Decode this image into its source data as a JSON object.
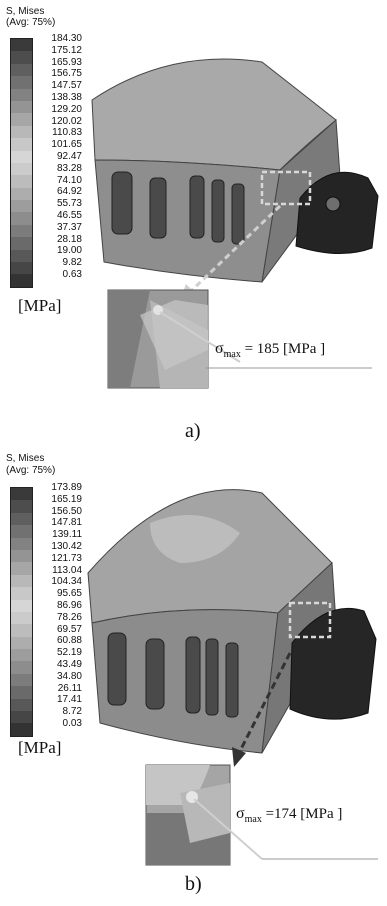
{
  "panels": [
    {
      "legend_title_1": "S, Mises",
      "legend_title_2": "(Avg: 75%)",
      "legend_values": [
        "184.30",
        "175.12",
        "165.93",
        "156.75",
        "147.57",
        "138.38",
        "129.20",
        "120.02",
        "110.83",
        "101.65",
        "92.47",
        "83.28",
        "74.10",
        "64.92",
        "55.73",
        "46.55",
        "37.37",
        "28.18",
        "19.00",
        "9.82",
        "0.63"
      ],
      "unit": "[MPa]",
      "sigma_symbol": "σ",
      "sigma_sub": "max",
      "sigma_value": "= 185  [MPa ]",
      "caption": "a)"
    },
    {
      "legend_title_1": "S, Mises",
      "legend_title_2": "(Avg: 75%)",
      "legend_values": [
        "173.89",
        "165.19",
        "156.50",
        "147.81",
        "139.11",
        "130.42",
        "121.73",
        "113.04",
        "104.34",
        "95.65",
        "86.96",
        "78.26",
        "69.57",
        "60.88",
        "52.19",
        "43.49",
        "34.80",
        "26.11",
        "17.41",
        "8.72",
        "0.03"
      ],
      "unit": "[MPa]",
      "sigma_symbol": "σ",
      "sigma_sub": "max",
      "sigma_value": "=174  [MPa ]",
      "caption": "b)"
    }
  ],
  "legend_colors": [
    "#3a3a3a",
    "#4d4d4d",
    "#5f5f5f",
    "#717171",
    "#828282",
    "#949494",
    "#a6a6a6",
    "#b8b8b8",
    "#c8c8c8",
    "#d6d6d6",
    "#cbcbcb",
    "#bcbcbc",
    "#adadad",
    "#9d9d9d",
    "#8d8d8d",
    "#7c7c7c",
    "#6a6a6a",
    "#585858",
    "#464646",
    "#333333"
  ]
}
